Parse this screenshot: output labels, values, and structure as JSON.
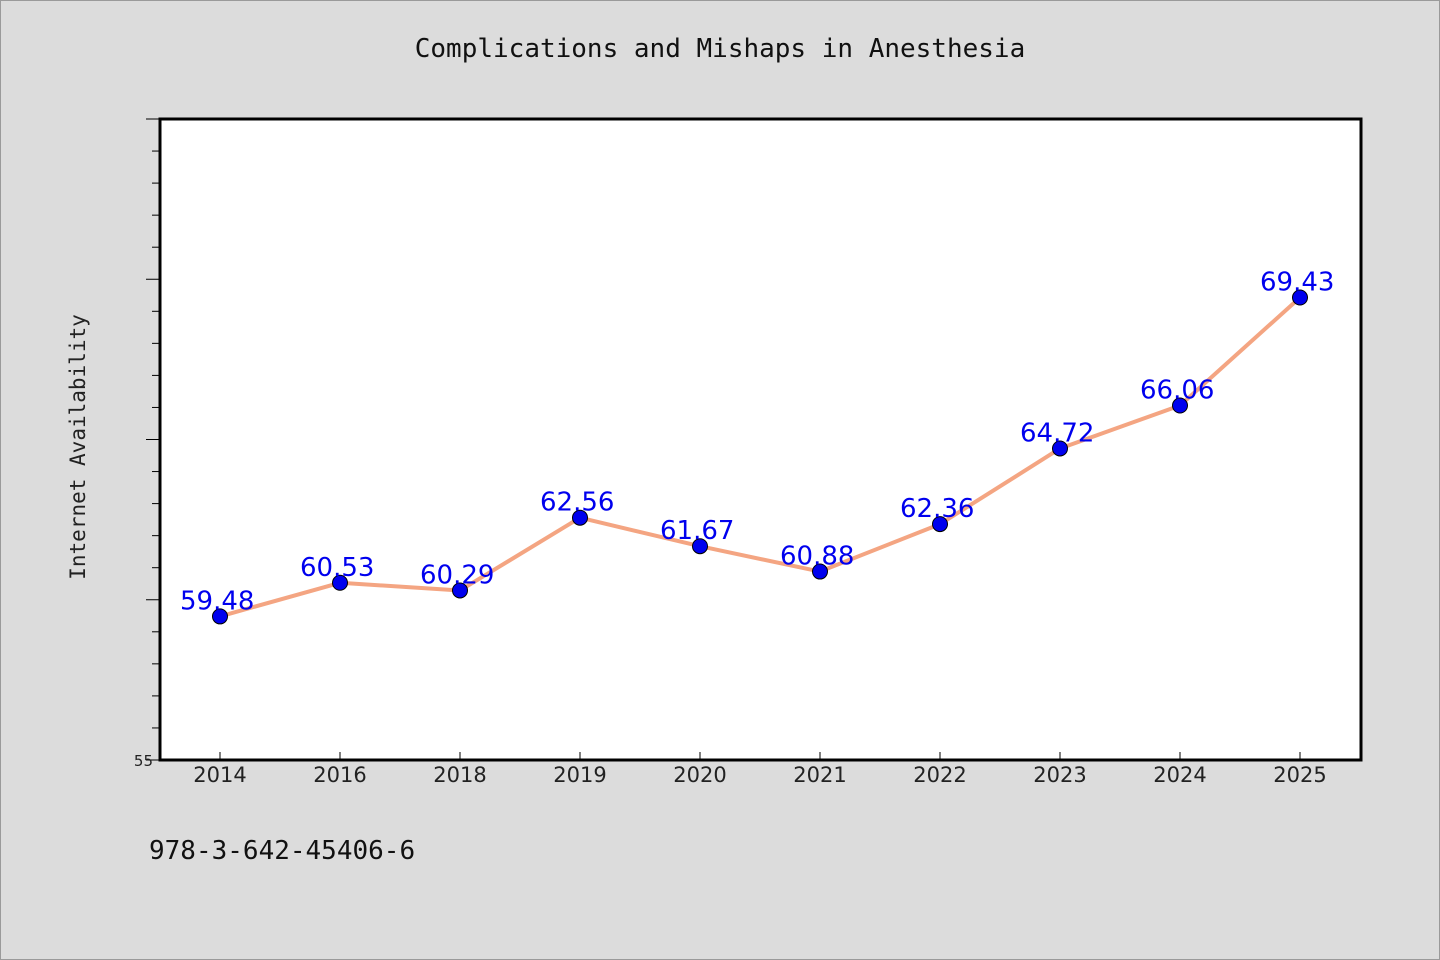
{
  "chart_data": {
    "type": "line",
    "title": "Complications and Mishaps in Anesthesia",
    "xlabel": "",
    "ylabel": "Internet Availability",
    "categories": [
      "2014",
      "2016",
      "2018",
      "2019",
      "2020",
      "2021",
      "2022",
      "2023",
      "2024",
      "2025"
    ],
    "series": [
      {
        "values": [
          59.48,
          60.53,
          60.29,
          62.56,
          61.67,
          60.88,
          62.36,
          64.72,
          66.06,
          69.43
        ]
      }
    ],
    "data_labels": [
      "59.48",
      "60.53",
      "60.29",
      "62.56",
      "61.67",
      "60.88",
      "62.36",
      "64.72",
      "66.06",
      "69.43"
    ],
    "ylim": [
      55,
      75
    ],
    "ytick_labels": [
      "55"
    ],
    "grid": false,
    "legend": "none",
    "colors": {
      "line": "#f4a582",
      "marker": "#0000ee",
      "label": "#0000ee",
      "plot_bg": "#ffffff",
      "page_bg": "#dcdcdc"
    }
  },
  "footer": {
    "isbn": "978-3-642-45406-6"
  }
}
